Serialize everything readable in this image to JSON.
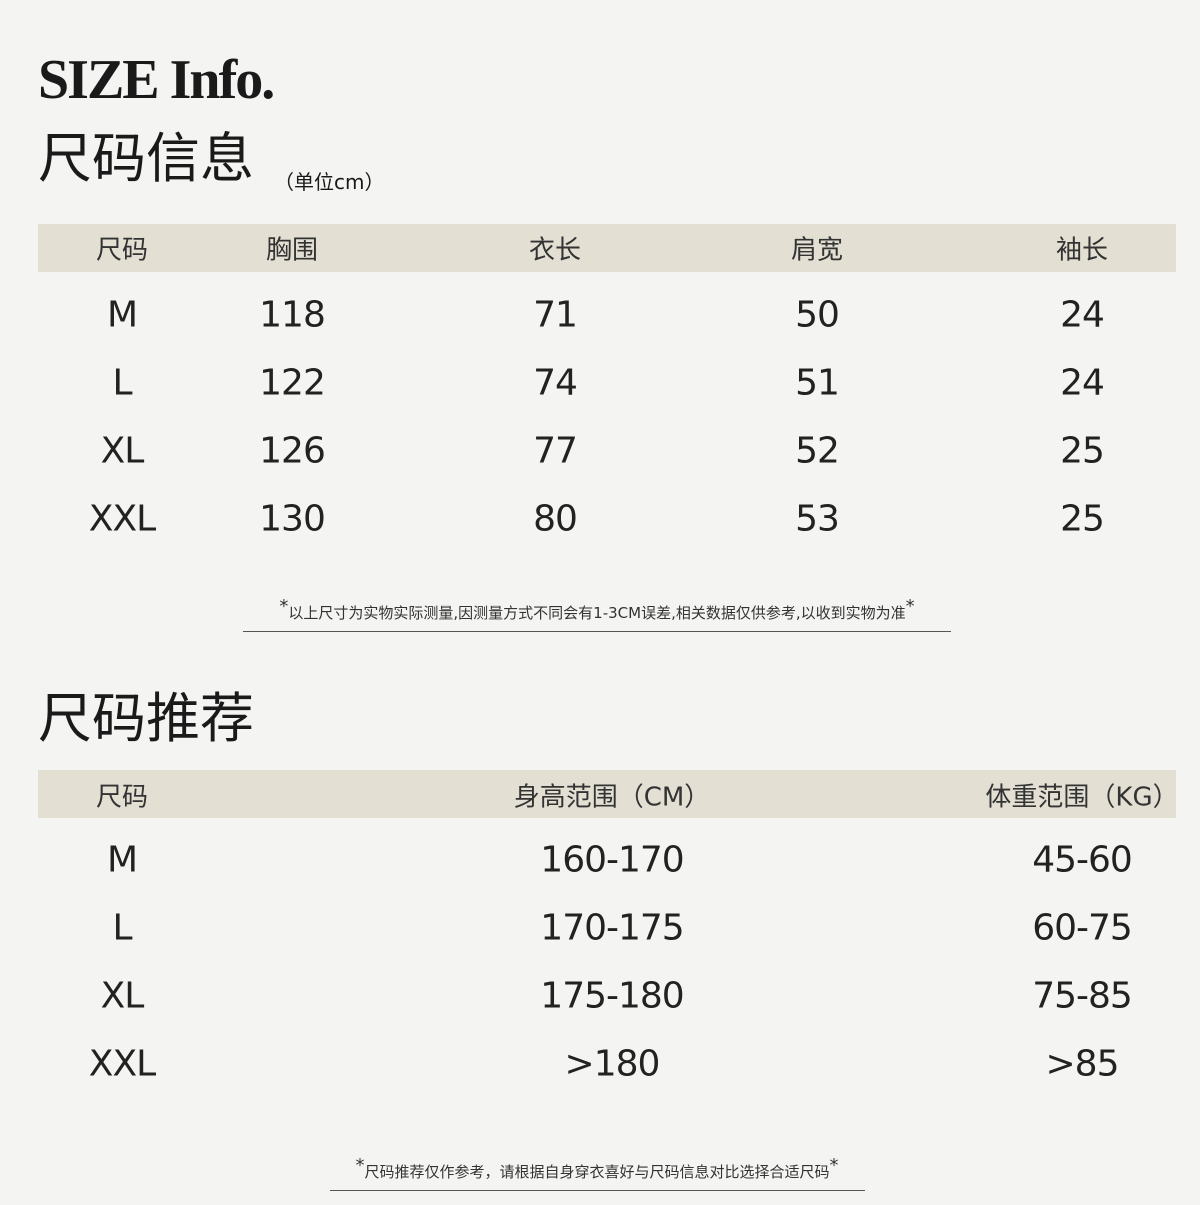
{
  "header": {
    "title": "SIZE Info.",
    "subtitle": "尺码信息",
    "unit": "（单位cm）"
  },
  "size_table": {
    "columns": [
      "尺码",
      "胸围",
      "衣长",
      "肩宽",
      "袖长"
    ],
    "rows": [
      [
        "M",
        118,
        71,
        50,
        24
      ],
      [
        "L",
        122,
        74,
        51,
        24
      ],
      [
        "XL",
        126,
        77,
        52,
        25
      ],
      [
        "XXL",
        130,
        80,
        53,
        25
      ]
    ]
  },
  "note_mark": "*",
  "size_note": "以上尺寸为实物实际测量,因测量方式不同会有1-3CM误差,相关数据仅供参考,以收到实物为准",
  "recommend_title": "尺码推荐",
  "recommend_table": {
    "columns": [
      "尺码",
      "身高范围（CM）",
      "体重范围（KG）"
    ],
    "rows": [
      [
        "M",
        "160-170",
        "45-60"
      ],
      [
        "L",
        "170-175",
        "60-75"
      ],
      [
        "XL",
        "175-180",
        "75-85"
      ],
      [
        "XXL",
        ">180",
        ">85"
      ]
    ]
  },
  "recommend_note": "尺码推荐仅作参考，请根据自身穿衣喜好与尺码信息对比选择合适尺码"
}
